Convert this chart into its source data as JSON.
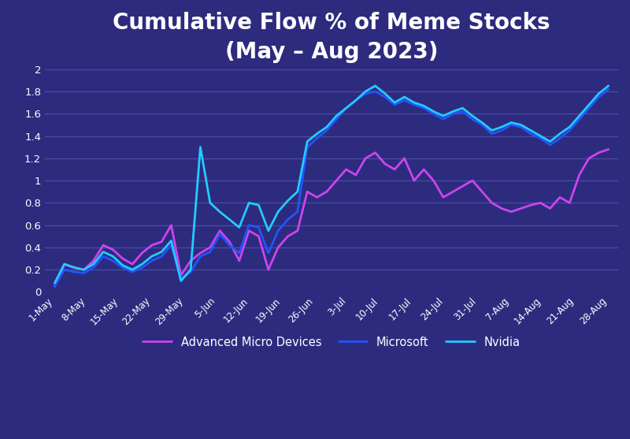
{
  "title": "Cumulative Flow % of Meme Stocks\n(May – Aug 2023)",
  "background_color": "#2d2b7e",
  "plot_bg_color": "#2d2b7e",
  "grid_color": "#5553a8",
  "text_color": "#ffffff",
  "title_fontsize": 20,
  "tick_labels": [
    "1-May",
    "8-May",
    "15-May",
    "22-May",
    "29-May",
    "5-Jun",
    "12-Jun",
    "19-Jun",
    "26-Jun",
    "3-Jul",
    "10-Jul",
    "17-Jul",
    "24-Jul",
    "31-Jul",
    "7-Aug",
    "14-Aug",
    "21-Aug",
    "28-Aug"
  ],
  "amd_color": "#cc44ee",
  "microsoft_color": "#2255ff",
  "nvidia_color": "#22ccff",
  "amd": [
    0.05,
    0.25,
    0.22,
    0.2,
    0.28,
    0.42,
    0.38,
    0.3,
    0.25,
    0.35,
    0.42,
    0.45,
    0.6,
    0.15,
    0.28,
    0.35,
    0.4,
    0.55,
    0.45,
    0.28,
    0.55,
    0.5,
    0.2,
    0.4,
    0.5,
    0.55,
    0.9,
    0.85,
    0.9,
    1.0,
    1.1,
    1.05,
    1.2,
    1.25,
    1.15,
    1.1,
    1.2,
    1.0,
    1.1,
    1.0,
    0.85,
    0.9,
    0.95,
    1.0,
    0.9,
    0.8,
    0.75,
    0.72,
    0.75,
    0.78,
    0.8,
    0.75,
    0.85,
    0.8,
    1.05,
    1.2,
    1.25,
    1.28
  ],
  "microsoft": [
    0.05,
    0.2,
    0.18,
    0.17,
    0.22,
    0.32,
    0.28,
    0.22,
    0.18,
    0.22,
    0.28,
    0.32,
    0.42,
    0.12,
    0.18,
    0.32,
    0.36,
    0.52,
    0.42,
    0.35,
    0.6,
    0.58,
    0.35,
    0.55,
    0.65,
    0.72,
    1.3,
    1.38,
    1.45,
    1.55,
    1.65,
    1.72,
    1.78,
    1.8,
    1.75,
    1.68,
    1.72,
    1.68,
    1.65,
    1.6,
    1.55,
    1.6,
    1.62,
    1.55,
    1.5,
    1.42,
    1.45,
    1.5,
    1.48,
    1.42,
    1.38,
    1.32,
    1.38,
    1.45,
    1.55,
    1.65,
    1.75,
    1.82
  ],
  "nvidia": [
    0.08,
    0.25,
    0.22,
    0.2,
    0.25,
    0.36,
    0.32,
    0.24,
    0.2,
    0.25,
    0.32,
    0.36,
    0.46,
    0.1,
    0.2,
    1.3,
    0.8,
    0.72,
    0.65,
    0.58,
    0.8,
    0.78,
    0.55,
    0.72,
    0.82,
    0.9,
    1.35,
    1.42,
    1.48,
    1.58,
    1.65,
    1.72,
    1.8,
    1.85,
    1.78,
    1.7,
    1.75,
    1.7,
    1.67,
    1.62,
    1.58,
    1.62,
    1.65,
    1.58,
    1.52,
    1.45,
    1.48,
    1.52,
    1.5,
    1.45,
    1.4,
    1.35,
    1.42,
    1.48,
    1.58,
    1.68,
    1.78,
    1.85
  ],
  "ylim": [
    0,
    2.0
  ],
  "yticks": [
    0,
    0.2,
    0.4,
    0.6,
    0.8,
    1.0,
    1.2,
    1.4,
    1.6,
    1.8,
    2.0
  ],
  "legend_labels": [
    "Advanced Micro Devices",
    "Microsoft",
    "Nvidia"
  ]
}
